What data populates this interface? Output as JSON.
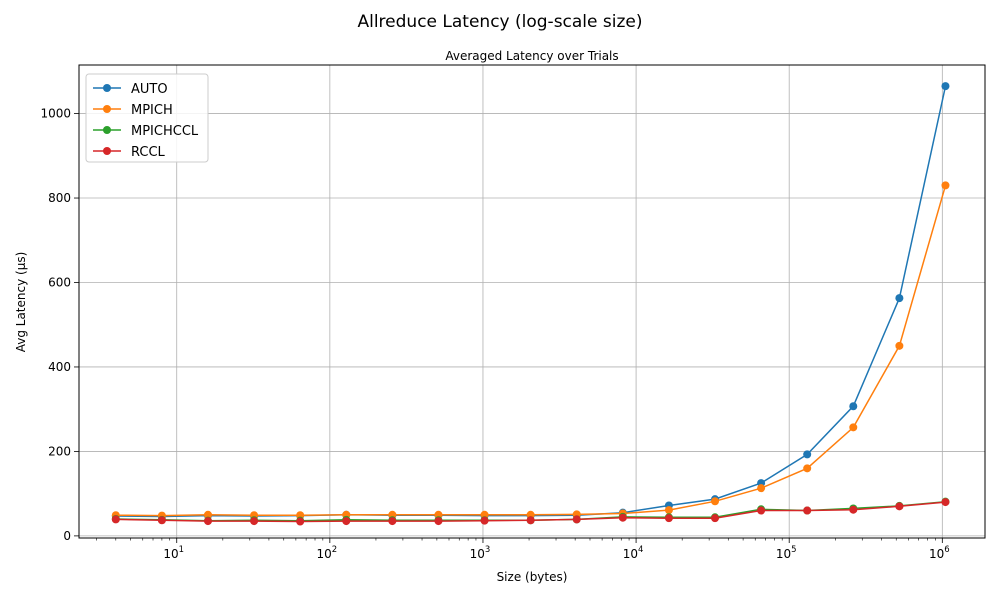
{
  "chart_data": {
    "type": "line",
    "title": "Allreduce Latency (log-scale size)",
    "subtitle": "Averaged Latency over Trials",
    "xlabel": "Size (bytes)",
    "ylabel": "Avg Latency (µs)",
    "x_scale": "log",
    "xlim": [
      2.3,
      1900000
    ],
    "ylim": [
      -5,
      1115
    ],
    "x_ticks": [
      {
        "value": 10,
        "base": "10",
        "exp": "1"
      },
      {
        "value": 100,
        "base": "10",
        "exp": "2"
      },
      {
        "value": 1000,
        "base": "10",
        "exp": "3"
      },
      {
        "value": 10000,
        "base": "10",
        "exp": "4"
      },
      {
        "value": 100000,
        "base": "10",
        "exp": "5"
      },
      {
        "value": 1000000,
        "base": "10",
        "exp": "6"
      }
    ],
    "y_ticks": [
      {
        "value": 0,
        "label": "0"
      },
      {
        "value": 200,
        "label": "200"
      },
      {
        "value": 400,
        "label": "400"
      },
      {
        "value": 600,
        "label": "600"
      },
      {
        "value": 800,
        "label": "800"
      },
      {
        "value": 1000,
        "label": "1000"
      }
    ],
    "grid": true,
    "legend_position": "top-left",
    "x": [
      4,
      8,
      16,
      32,
      64,
      128,
      256,
      512,
      1024,
      2048,
      4096,
      8192,
      16384,
      32768,
      65536,
      131072,
      262144,
      524288,
      1048576
    ],
    "series": [
      {
        "name": "AUTO",
        "color": "#1f77b4",
        "values": [
          47,
          46,
          48,
          47,
          48,
          50,
          49,
          49,
          48,
          48,
          49,
          55,
          72,
          87,
          125,
          193,
          307,
          563,
          1065
        ]
      },
      {
        "name": "MPICH",
        "color": "#ff7f0e",
        "values": [
          49,
          48,
          50,
          49,
          49,
          50,
          50,
          50,
          50,
          50,
          51,
          53,
          61,
          82,
          113,
          160,
          257,
          450,
          830
        ]
      },
      {
        "name": "MPICHCCL",
        "color": "#2ca02c",
        "values": [
          40,
          38,
          36,
          37,
          36,
          38,
          37,
          37,
          37,
          37,
          39,
          45,
          44,
          44,
          63,
          60,
          65,
          71,
          81
        ]
      },
      {
        "name": "RCCL",
        "color": "#d62728",
        "values": [
          39,
          37,
          35,
          35,
          34,
          35,
          35,
          35,
          36,
          37,
          39,
          43,
          42,
          42,
          60,
          60,
          62,
          70,
          80
        ]
      }
    ]
  }
}
